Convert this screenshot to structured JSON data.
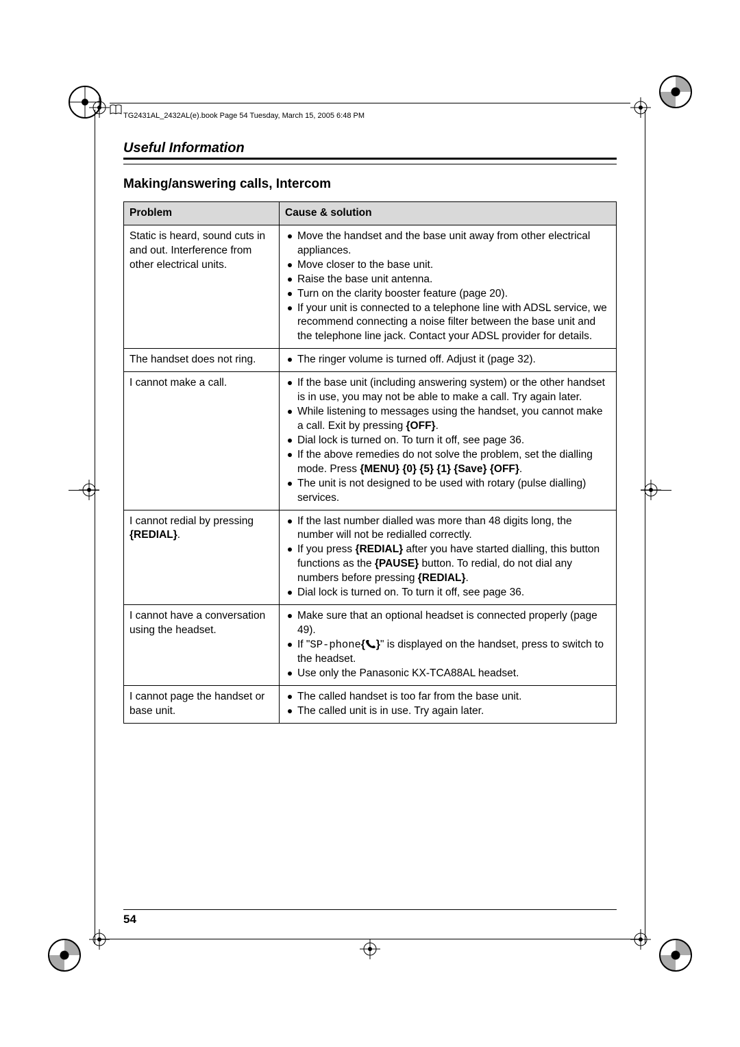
{
  "header_runner": "TG2431AL_2432AL(e).book  Page 54  Tuesday, March 15, 2005  6:48 PM",
  "section": "Useful Information",
  "subsection": "Making/answering calls, Intercom",
  "page_number": "54",
  "table": {
    "columns": [
      "Problem",
      "Cause & solution"
    ],
    "rows": [
      {
        "problem": "Static is heard, sound cuts in and out. Interference from other electrical units.",
        "solutions": [
          {
            "pre": "Move the handset and the base unit away from other electrical appliances."
          },
          {
            "pre": "Move closer to the base unit."
          },
          {
            "pre": "Raise the base unit antenna."
          },
          {
            "pre": "Turn on the clarity booster feature (page 20)."
          },
          {
            "pre": "If your unit is connected to a telephone line with ADSL service, we recommend connecting a noise filter between the base unit and the telephone line jack. Contact your ADSL provider for details."
          }
        ]
      },
      {
        "problem": "The handset does not ring.",
        "solutions": [
          {
            "pre": "The ringer volume is turned off. Adjust it (page 32)."
          }
        ]
      },
      {
        "problem": "I cannot make a call.",
        "solutions": [
          {
            "pre": "If the base unit (including answering system) or the other handset is in use, you may not be able to make a call. Try again later."
          },
          {
            "pre": "While listening to messages using the handset, you cannot make a call. Exit by pressing ",
            "k1": "{OFF}",
            "post1": "."
          },
          {
            "pre": "Dial lock is turned on. To turn it off, see page 36."
          },
          {
            "pre": "If the above remedies do not solve the problem, set the dialling mode. Press ",
            "k1": "{MENU} {0} {5} {1} {Save} {OFF}",
            "post1": "."
          },
          {
            "pre": "The unit is not designed to be used with rotary (pulse dialling) services."
          }
        ]
      },
      {
        "problem_pre": "I cannot redial by pressing ",
        "problem_k": "{REDIAL}",
        "problem_post": ".",
        "solutions": [
          {
            "pre": "If the last number dialled was more than 48 digits long, the number will not be redialled correctly."
          },
          {
            "pre": "If you press ",
            "k1": "{REDIAL}",
            "mid1": " after you have started dialling, this button functions as the ",
            "k2": "{PAUSE}",
            "mid2": " button. To redial, do not dial any numbers before pressing ",
            "k3": "{REDIAL}",
            "post3": "."
          },
          {
            "pre": "Dial lock is turned on. To turn it off, see page 36."
          }
        ]
      },
      {
        "problem": "I cannot have a conversation using the headset.",
        "solutions": [
          {
            "pre": "Make sure that an optional headset is connected properly (page 49)."
          },
          {
            "pre": "If \"",
            "mono": "SP-phone",
            "mid1": "\" is displayed on the handset, press ",
            "k1": "{",
            "icon": "handset",
            "post_icon": "}",
            "post1": " to switch to the headset."
          },
          {
            "pre": "Use only the Panasonic KX-TCA88AL headset."
          }
        ]
      },
      {
        "problem": "I cannot page the handset or base unit.",
        "solutions": [
          {
            "pre": "The called handset is too far from the base unit."
          },
          {
            "pre": "The called unit is in use. Try again later."
          }
        ]
      }
    ]
  },
  "colors": {
    "header_bg": "#d9d9d9"
  }
}
